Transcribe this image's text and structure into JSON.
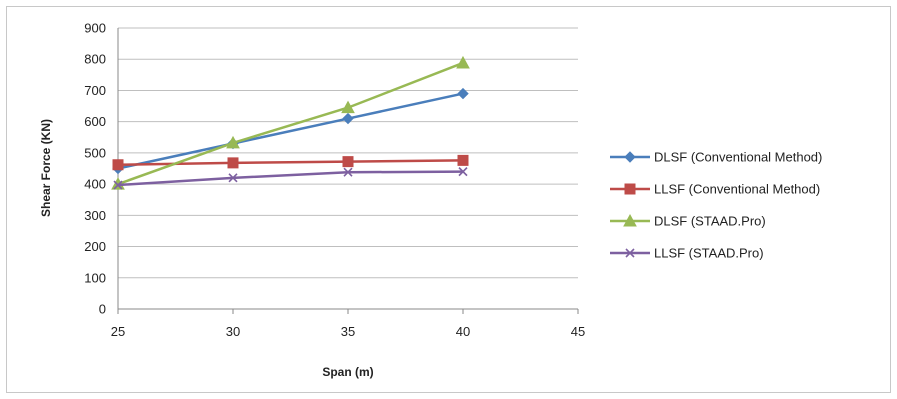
{
  "chart_data": {
    "type": "line",
    "title": "",
    "xlabel": "Span (m)",
    "ylabel": "Shear Force (KN)",
    "xlim": [
      25,
      45
    ],
    "ylim": [
      0,
      900
    ],
    "x_ticks": [
      "25",
      "30",
      "35",
      "40",
      "45"
    ],
    "y_ticks": [
      "0",
      "100",
      "200",
      "300",
      "400",
      "500",
      "600",
      "700",
      "800",
      "900"
    ],
    "grid": "horizontal",
    "legend_position": "right",
    "x": [
      25,
      30,
      35,
      40
    ],
    "series": [
      {
        "name": "DLSF (Conventional Method)",
        "values": [
          450,
          530,
          610,
          690
        ],
        "color": "#4a7ebb",
        "marker": "diamond"
      },
      {
        "name": "LLSF (Conventional Method)",
        "values": [
          462,
          468,
          472,
          476
        ],
        "color": "#be4b48",
        "marker": "square"
      },
      {
        "name": "DLSF (STAAD.Pro)",
        "values": [
          400,
          532,
          645,
          788
        ],
        "color": "#98b954",
        "marker": "triangle"
      },
      {
        "name": "LLSF (STAAD.Pro)",
        "values": [
          397,
          420,
          438,
          440
        ],
        "color": "#7d60a0",
        "marker": "x"
      }
    ]
  }
}
